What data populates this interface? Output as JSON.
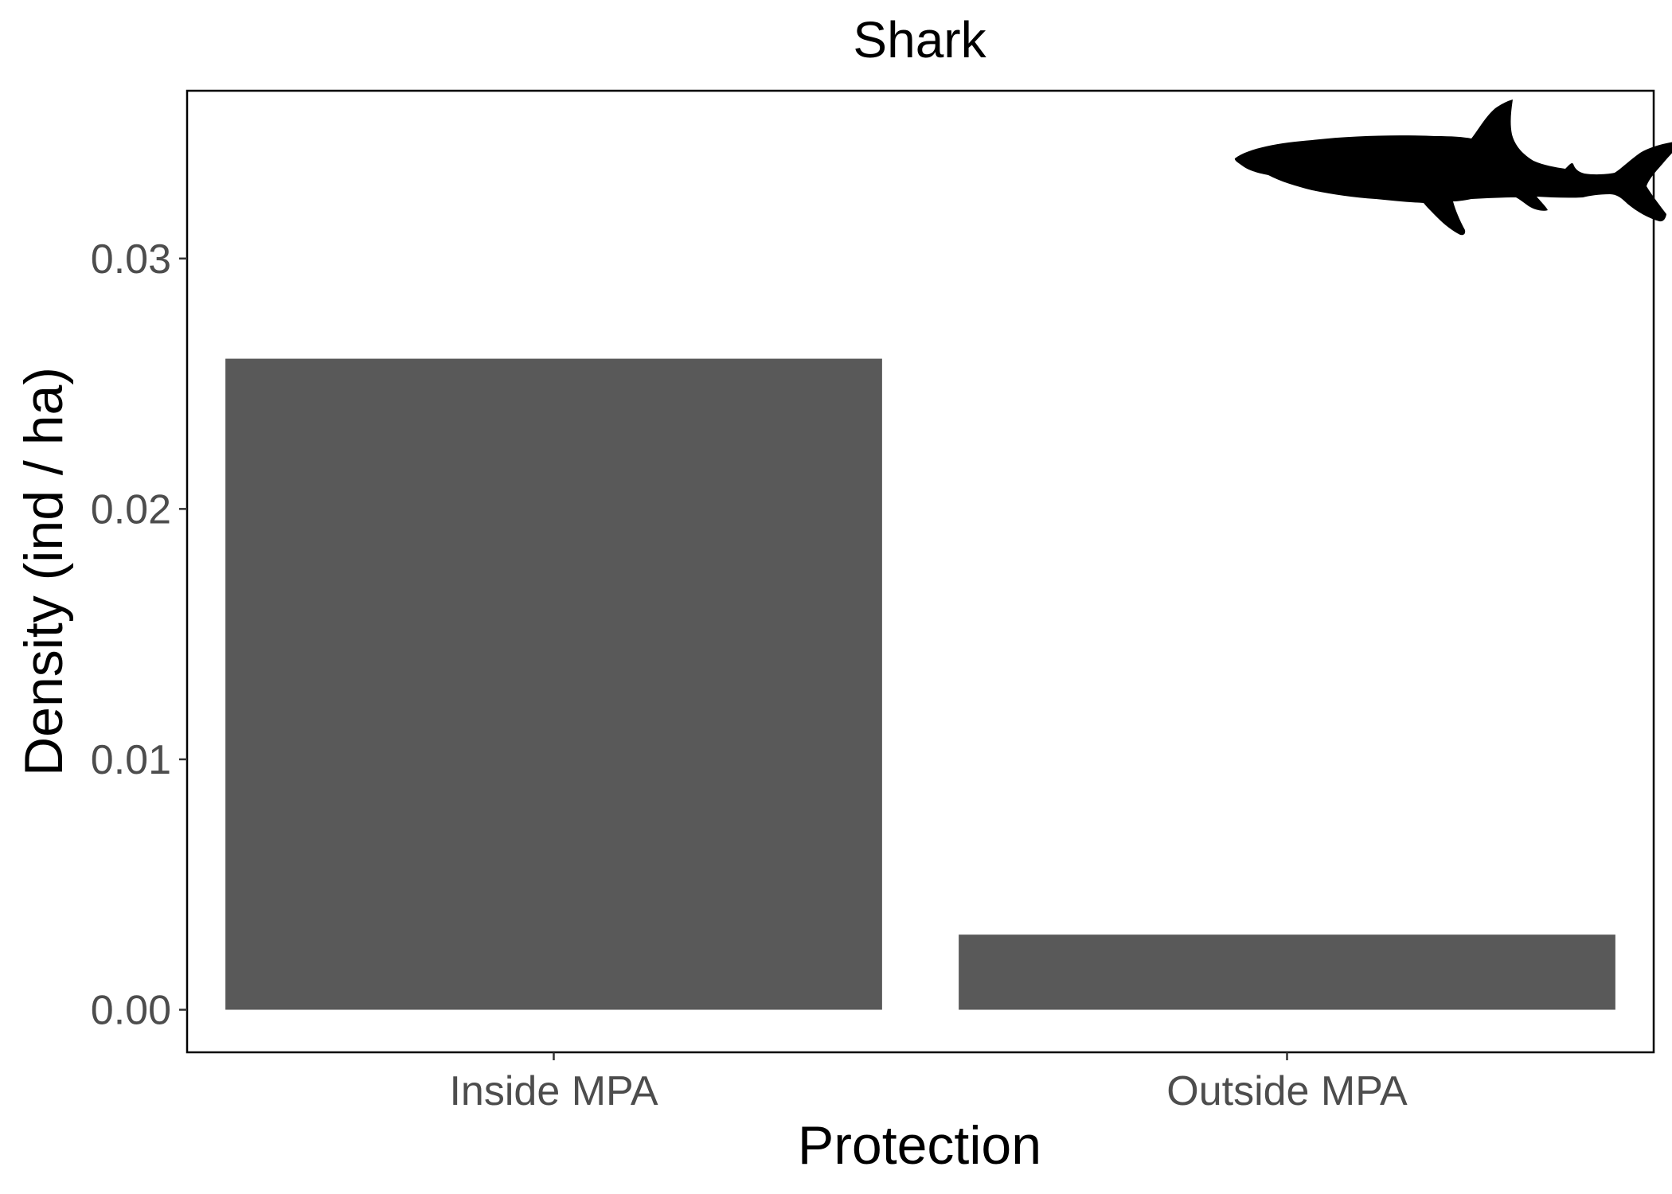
{
  "chart_data": {
    "type": "bar",
    "title": "Shark",
    "xlabel": "Protection",
    "ylabel": "Density (ind / ha)",
    "categories": [
      "Inside MPA",
      "Outside MPA"
    ],
    "values": [
      0.026,
      0.003
    ],
    "ylim": [
      -0.0017,
      0.0367
    ],
    "yticks": [
      0.0,
      0.01,
      0.02,
      0.03
    ],
    "ytick_labels": [
      "0.00",
      "0.01",
      "0.02",
      "0.03"
    ],
    "grid": false,
    "bar_color": "#595959",
    "icon": "shark-silhouette-icon"
  }
}
